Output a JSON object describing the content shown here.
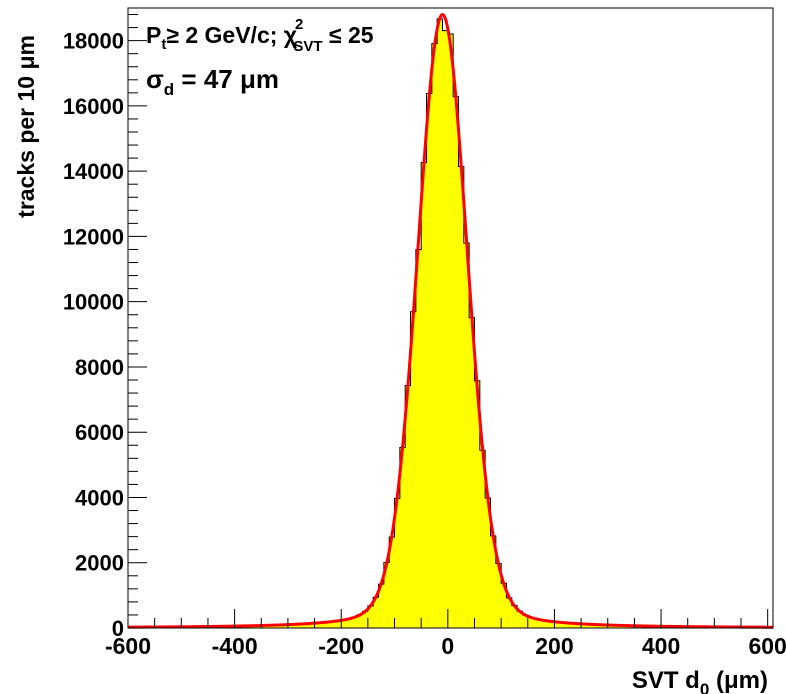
{
  "chart_data": {
    "type": "bar",
    "xlabel_main": "SVT d",
    "xlabel_sub": "0",
    "xlabel_unit": " (μm)",
    "ylabel": "tracks per 10 μm",
    "xlim": [
      -600,
      610
    ],
    "ylim": [
      0,
      19000
    ],
    "x_ticks": [
      -600,
      -400,
      -200,
      0,
      200,
      400,
      600
    ],
    "y_ticks": [
      0,
      2000,
      4000,
      6000,
      8000,
      10000,
      12000,
      14000,
      16000,
      18000
    ],
    "bin_width": 10,
    "fit": {
      "type": "gaussian",
      "mean": -10,
      "sigma": 47,
      "peak": 18800
    },
    "annotation_line1": {
      "P": "P",
      "t": "t",
      "cond1": "≥ 2 GeV/c; ",
      "chi": "χ",
      "sup": "2",
      "sub": "SVT",
      "cond2": " ≤ 25"
    },
    "annotation_line2": {
      "sigma": "σ",
      "sub": "d",
      "value": " = 47 ",
      "mu": "μ",
      "unit": "m"
    },
    "fill_color": "#ffff00",
    "fit_color": "#ff0000"
  }
}
